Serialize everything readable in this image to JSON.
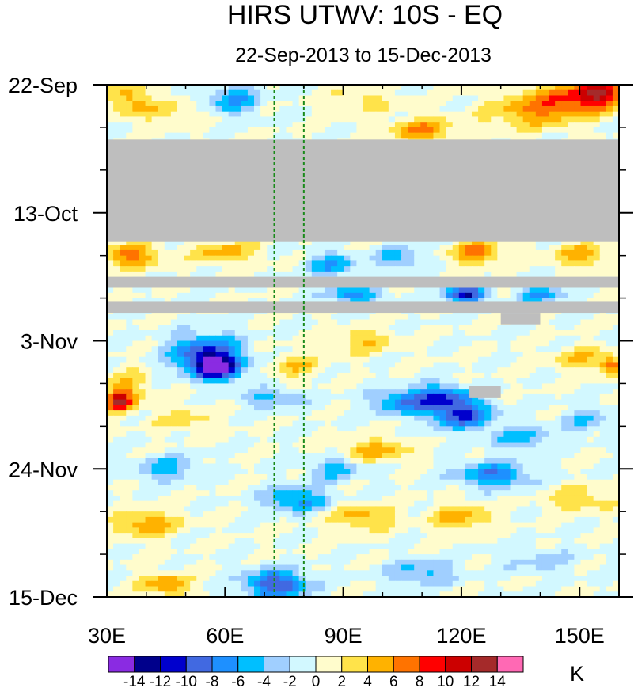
{
  "chart_data": {
    "type": "heatmap",
    "title": "HIRS UTWV: 10S - EQ",
    "subtitle": "22-Sep-2013 to 15-Dec-2013",
    "units": "K",
    "x": {
      "min": 30,
      "max": 160,
      "ticks": [
        30,
        60,
        90,
        120,
        150
      ],
      "tick_labels": [
        "30E",
        "60E",
        "90E",
        "120E",
        "150E"
      ],
      "minor_step": 10
    },
    "y": {
      "start": "22-Sep-2013",
      "end": "15-Dec-2013",
      "days": 84,
      "tick_days": [
        0,
        21,
        42,
        63,
        84
      ],
      "tick_labels": [
        "22-Sep",
        "13-Oct",
        "3-Nov",
        "24-Nov",
        "15-Dec"
      ],
      "minor_step_days": 7
    },
    "reference_lines_lon": [
      72.5,
      80
    ],
    "missing_data_blocks": [
      {
        "lon": [
          30,
          160
        ],
        "days": [
          9,
          25.8
        ]
      },
      {
        "lon": [
          30,
          160
        ],
        "days": [
          31.5,
          33.3
        ]
      },
      {
        "lon": [
          30,
          160
        ],
        "days": [
          35.5,
          37.4
        ]
      },
      {
        "lon": [
          130,
          140
        ],
        "days": [
          37.4,
          39.3
        ]
      },
      {
        "lon": [
          122,
          130
        ],
        "days": [
          49.4,
          51.4
        ]
      }
    ],
    "colorbar": {
      "colors": [
        "#8a2be2",
        "#00008b",
        "#0000cd",
        "#4169e1",
        "#1e90ff",
        "#00bfff",
        "#a0cfff",
        "#d2f8ff",
        "#fffccc",
        "#ffe34a",
        "#ffb200",
        "#ff7300",
        "#ff0000",
        "#cc0000",
        "#a52a2a",
        "#ff69b4"
      ],
      "levels": [
        -14,
        -12,
        -10,
        -8,
        -6,
        -4,
        -2,
        0,
        2,
        4,
        6,
        8,
        10,
        12,
        14
      ],
      "labels": [
        "-14",
        "-12",
        "-10",
        "-8",
        "-6",
        "-4",
        "-2",
        "0",
        "2",
        "4",
        "6",
        "8",
        "10",
        "12",
        "14"
      ]
    },
    "field_features": [
      {
        "lon": 155,
        "day": 1.5,
        "value": 11,
        "lon_w": 7,
        "day_w": 2.5
      },
      {
        "lon": 145,
        "day": 3,
        "value": 6,
        "lon_w": 9,
        "day_w": 3
      },
      {
        "lon": 135,
        "day": 4.5,
        "value": 4,
        "lon_w": 10,
        "day_w": 3
      },
      {
        "lon": 110,
        "day": 7.5,
        "value": 6,
        "lon_w": 8,
        "day_w": 2
      },
      {
        "lon": 36,
        "day": 2,
        "value": 5,
        "lon_w": 5,
        "day_w": 2.5
      },
      {
        "lon": 62,
        "day": 2.5,
        "value": -6,
        "lon_w": 7,
        "day_w": 2.5
      },
      {
        "lon": 95,
        "day": 2.5,
        "value": 3,
        "lon_w": 8,
        "day_w": 2
      },
      {
        "lon": 45,
        "day": 4.5,
        "value": 3,
        "lon_w": 10,
        "day_w": 2
      },
      {
        "lon": 36,
        "day": 28,
        "value": 7,
        "lon_w": 7,
        "day_w": 2
      },
      {
        "lon": 60,
        "day": 27.5,
        "value": 5,
        "lon_w": 8,
        "day_w": 2
      },
      {
        "lon": 87,
        "day": 29.5,
        "value": -6,
        "lon_w": 6,
        "day_w": 2
      },
      {
        "lon": 104,
        "day": 28.5,
        "value": -5,
        "lon_w": 6,
        "day_w": 2
      },
      {
        "lon": 124,
        "day": 27.5,
        "value": 7,
        "lon_w": 6,
        "day_w": 2
      },
      {
        "lon": 150,
        "day": 28,
        "value": 5,
        "lon_w": 7,
        "day_w": 2
      },
      {
        "lon": 93,
        "day": 34.5,
        "value": -7,
        "lon_w": 7,
        "day_w": 1.5
      },
      {
        "lon": 121,
        "day": 34.5,
        "value": -12,
        "lon_w": 5,
        "day_w": 1.5
      },
      {
        "lon": 140,
        "day": 34.5,
        "value": -6,
        "lon_w": 6,
        "day_w": 1.5
      },
      {
        "lon": 55,
        "day": 44,
        "value": -10,
        "lon_w": 9,
        "day_w": 3
      },
      {
        "lon": 58,
        "day": 46.5,
        "value": -13,
        "lon_w": 6,
        "day_w": 2
      },
      {
        "lon": 33,
        "day": 52,
        "value": 10,
        "lon_w": 3,
        "day_w": 1.5
      },
      {
        "lon": 35,
        "day": 50,
        "value": 5,
        "lon_w": 5,
        "day_w": 3
      },
      {
        "lon": 50,
        "day": 55,
        "value": 3,
        "lon_w": 8,
        "day_w": 2
      },
      {
        "lon": 78,
        "day": 46,
        "value": 4,
        "lon_w": 6,
        "day_w": 2
      },
      {
        "lon": 95,
        "day": 42,
        "value": 4,
        "lon_w": 8,
        "day_w": 2
      },
      {
        "lon": 72,
        "day": 51.5,
        "value": -5,
        "lon_w": 8,
        "day_w": 1.5
      },
      {
        "lon": 105,
        "day": 52,
        "value": -7,
        "lon_w": 8,
        "day_w": 2
      },
      {
        "lon": 120,
        "day": 54,
        "value": -10,
        "lon_w": 8,
        "day_w": 2.5
      },
      {
        "lon": 115,
        "day": 51,
        "value": -7,
        "lon_w": 7,
        "day_w": 2
      },
      {
        "lon": 150,
        "day": 45,
        "value": 4,
        "lon_w": 7,
        "day_w": 2
      },
      {
        "lon": 158,
        "day": 46,
        "value": 7,
        "lon_w": 3,
        "day_w": 1.5
      },
      {
        "lon": 152,
        "day": 55,
        "value": -4,
        "lon_w": 7,
        "day_w": 2
      },
      {
        "lon": 135,
        "day": 58,
        "value": -5,
        "lon_w": 8,
        "day_w": 2
      },
      {
        "lon": 98,
        "day": 60,
        "value": 5,
        "lon_w": 9,
        "day_w": 2
      },
      {
        "lon": 128,
        "day": 64,
        "value": -8,
        "lon_w": 9,
        "day_w": 2
      },
      {
        "lon": 88,
        "day": 63,
        "value": -5,
        "lon_w": 7,
        "day_w": 2
      },
      {
        "lon": 45,
        "day": 63,
        "value": -5,
        "lon_w": 8,
        "day_w": 2
      },
      {
        "lon": 40,
        "day": 72,
        "value": 6,
        "lon_w": 8,
        "day_w": 2
      },
      {
        "lon": 78,
        "day": 68,
        "value": -7,
        "lon_w": 8,
        "day_w": 2
      },
      {
        "lon": 95,
        "day": 71,
        "value": 5,
        "lon_w": 8,
        "day_w": 2
      },
      {
        "lon": 120,
        "day": 71,
        "value": 5,
        "lon_w": 8,
        "day_w": 2
      },
      {
        "lon": 150,
        "day": 68,
        "value": 4,
        "lon_w": 8,
        "day_w": 2
      },
      {
        "lon": 73,
        "day": 82,
        "value": -10,
        "lon_w": 8,
        "day_w": 2.5
      },
      {
        "lon": 45,
        "day": 82,
        "value": 6,
        "lon_w": 6,
        "day_w": 2
      },
      {
        "lon": 110,
        "day": 80,
        "value": -5,
        "lon_w": 9,
        "day_w": 2
      },
      {
        "lon": 140,
        "day": 78,
        "value": -3,
        "lon_w": 10,
        "day_w": 2
      }
    ]
  }
}
